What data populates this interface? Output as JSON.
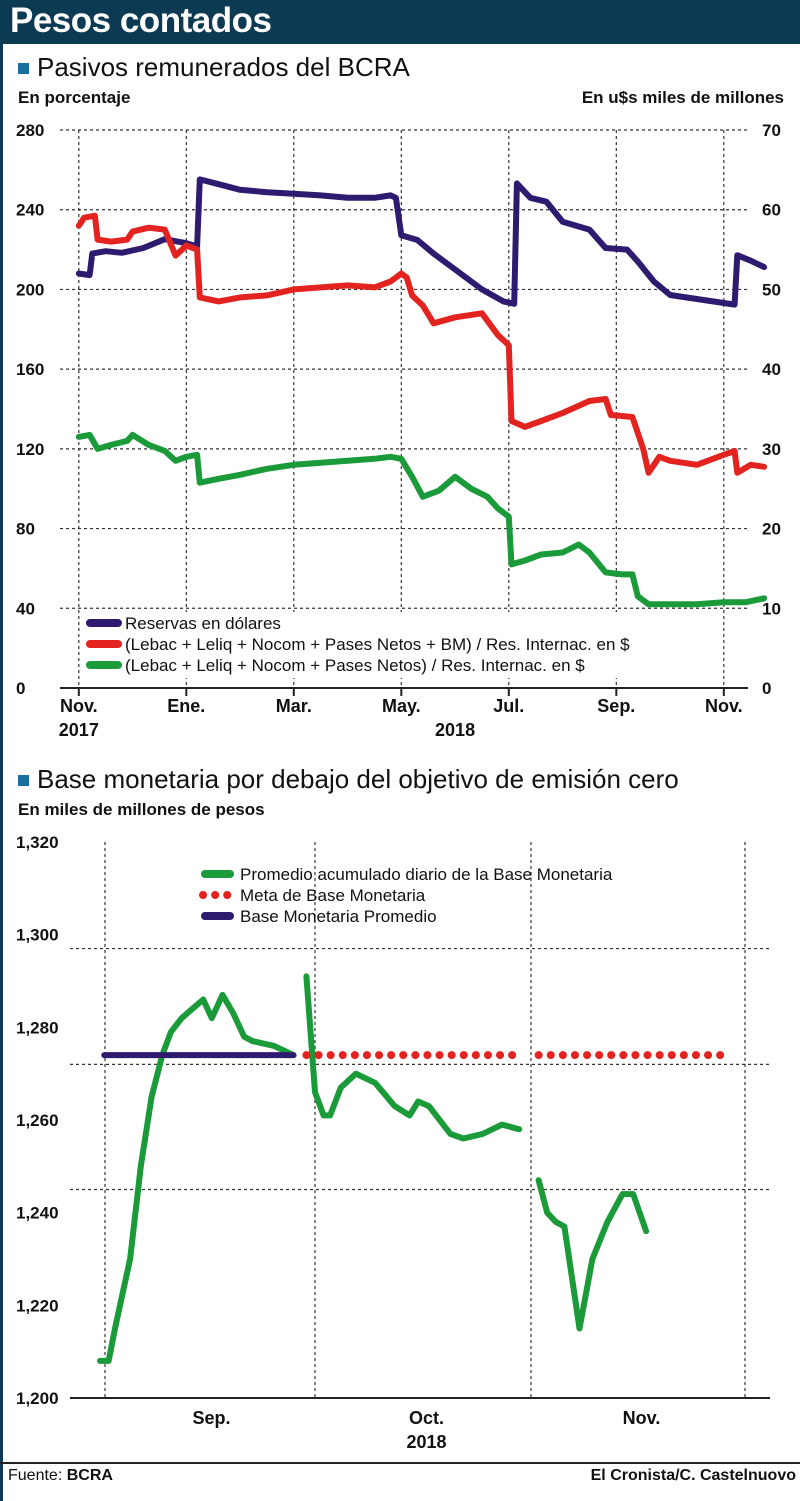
{
  "header": {
    "title": "Pesos contados"
  },
  "footer": {
    "source_label": "Fuente:",
    "source": "BCRA",
    "credit": "El Cronista/C. Castelnuovo"
  },
  "chart_data": [
    {
      "type": "line",
      "title": "Pasivos remunerados del BCRA",
      "ylabel_left": "En porcentaje",
      "ylabel_right": "En u$s miles de millones",
      "ylim_left": [
        0,
        280
      ],
      "ylim_right": [
        0,
        70
      ],
      "yticks_left": [
        "0",
        "40",
        "80",
        "120",
        "160",
        "200",
        "240",
        "280"
      ],
      "yticks_right": [
        "0",
        "10",
        "20",
        "30",
        "40",
        "50",
        "60",
        "70"
      ],
      "xticks": [
        {
          "label": "Nov.",
          "sub": "2017",
          "t": 0
        },
        {
          "label": "Ene.",
          "sub": "",
          "t": 2
        },
        {
          "label": "Mar.",
          "sub": "",
          "t": 4
        },
        {
          "label": "May.",
          "sub": "2018",
          "t": 6
        },
        {
          "label": "Jul.",
          "sub": "",
          "t": 8
        },
        {
          "label": "Sep.",
          "sub": "",
          "t": 10
        },
        {
          "label": "Nov.",
          "sub": "",
          "t": 12
        }
      ],
      "x_range": [
        -0.35,
        12.45
      ],
      "legend": [
        {
          "name": "Reservas en dólares",
          "color": "#2e1a6e"
        },
        {
          "name": "(Lebac + Leliq + Nocom + Pases Netos + BM) / Res. Internac. en $",
          "color": "#e3231f"
        },
        {
          "name": "(Lebac + Leliq + Nocom + Pases Netos) / Res. Internac. en $",
          "color": "#1b9a3a"
        }
      ],
      "series": [
        {
          "name": "Reservas en dólares",
          "axis": "right",
          "color": "#2e1a6e",
          "points": [
            [
              0,
              52
            ],
            [
              0.2,
              51.8
            ],
            [
              0.25,
              54.5
            ],
            [
              0.5,
              54.8
            ],
            [
              0.8,
              54.6
            ],
            [
              1.2,
              55.2
            ],
            [
              1.6,
              56.3
            ],
            [
              2.0,
              55.8
            ],
            [
              2.2,
              55.4
            ],
            [
              2.25,
              63.8
            ],
            [
              2.6,
              63.2
            ],
            [
              3.0,
              62.5
            ],
            [
              3.5,
              62.2
            ],
            [
              4.0,
              62
            ],
            [
              4.5,
              61.8
            ],
            [
              5.0,
              61.5
            ],
            [
              5.5,
              61.5
            ],
            [
              5.8,
              61.8
            ],
            [
              5.9,
              61.5
            ],
            [
              6.0,
              56.8
            ],
            [
              6.3,
              56.2
            ],
            [
              6.6,
              54.5
            ],
            [
              7.0,
              52.5
            ],
            [
              7.5,
              50
            ],
            [
              7.9,
              48.5
            ],
            [
              8.1,
              48.2
            ],
            [
              8.15,
              63.3
            ],
            [
              8.4,
              61.5
            ],
            [
              8.7,
              61
            ],
            [
              9.0,
              58.5
            ],
            [
              9.5,
              57.5
            ],
            [
              9.8,
              55.2
            ],
            [
              10.2,
              55
            ],
            [
              10.4,
              53.5
            ],
            [
              10.7,
              51
            ],
            [
              11.0,
              49.3
            ],
            [
              11.5,
              48.8
            ],
            [
              12.0,
              48.3
            ],
            [
              12.2,
              48.1
            ],
            [
              12.25,
              54.3
            ],
            [
              12.5,
              53.6
            ],
            [
              12.75,
              52.8
            ]
          ]
        },
        {
          "name": "(Lebac + Leliq + Nocom + Pases Netos + BM) / Res. Internac. en $",
          "axis": "left",
          "color": "#e3231f",
          "points": [
            [
              0,
              232
            ],
            [
              0.1,
              236
            ],
            [
              0.3,
              237
            ],
            [
              0.35,
              225
            ],
            [
              0.6,
              224
            ],
            [
              0.9,
              225
            ],
            [
              1.0,
              229
            ],
            [
              1.3,
              231
            ],
            [
              1.6,
              230
            ],
            [
              1.8,
              217
            ],
            [
              2.0,
              222
            ],
            [
              2.1,
              221
            ],
            [
              2.2,
              220
            ],
            [
              2.25,
              196
            ],
            [
              2.6,
              194
            ],
            [
              3.0,
              196
            ],
            [
              3.5,
              197
            ],
            [
              4.0,
              200
            ],
            [
              4.5,
              201
            ],
            [
              5.0,
              202
            ],
            [
              5.5,
              201
            ],
            [
              5.8,
              204
            ],
            [
              6.0,
              208
            ],
            [
              6.1,
              206
            ],
            [
              6.2,
              197
            ],
            [
              6.4,
              192
            ],
            [
              6.6,
              183
            ],
            [
              7.0,
              186
            ],
            [
              7.5,
              188
            ],
            [
              7.8,
              177
            ],
            [
              8.0,
              172
            ],
            [
              8.05,
              134
            ],
            [
              8.3,
              131
            ],
            [
              8.6,
              134
            ],
            [
              9.0,
              138
            ],
            [
              9.5,
              144
            ],
            [
              9.8,
              145
            ],
            [
              9.9,
              137
            ],
            [
              10.3,
              136
            ],
            [
              10.5,
              120
            ],
            [
              10.6,
              108
            ],
            [
              10.8,
              116
            ],
            [
              11.0,
              114
            ],
            [
              11.5,
              112
            ],
            [
              12.0,
              117
            ],
            [
              12.2,
              119
            ],
            [
              12.25,
              108
            ],
            [
              12.5,
              112
            ],
            [
              12.75,
              111
            ]
          ]
        },
        {
          "name": "(Lebac + Leliq + Nocom + Pases Netos) / Res. Internac. en $",
          "axis": "left",
          "color": "#1b9a3a",
          "points": [
            [
              0,
              126
            ],
            [
              0.2,
              127
            ],
            [
              0.35,
              120
            ],
            [
              0.6,
              122
            ],
            [
              0.9,
              124
            ],
            [
              1.0,
              127
            ],
            [
              1.3,
              122
            ],
            [
              1.6,
              119
            ],
            [
              1.8,
              114
            ],
            [
              2.0,
              116
            ],
            [
              2.2,
              117
            ],
            [
              2.25,
              103
            ],
            [
              2.6,
              105
            ],
            [
              3.0,
              107
            ],
            [
              3.5,
              110
            ],
            [
              4.0,
              112
            ],
            [
              4.5,
              113
            ],
            [
              5.0,
              114
            ],
            [
              5.5,
              115
            ],
            [
              5.8,
              116
            ],
            [
              6.0,
              115
            ],
            [
              6.2,
              106
            ],
            [
              6.4,
              96
            ],
            [
              6.7,
              99
            ],
            [
              7.0,
              106
            ],
            [
              7.3,
              100
            ],
            [
              7.6,
              96
            ],
            [
              7.8,
              90
            ],
            [
              8.0,
              86
            ],
            [
              8.05,
              62
            ],
            [
              8.3,
              64
            ],
            [
              8.6,
              67
            ],
            [
              9.0,
              68
            ],
            [
              9.3,
              72
            ],
            [
              9.5,
              68
            ],
            [
              9.8,
              58
            ],
            [
              10.1,
              57
            ],
            [
              10.3,
              57
            ],
            [
              10.4,
              46
            ],
            [
              10.6,
              42
            ],
            [
              11.0,
              42
            ],
            [
              11.5,
              42
            ],
            [
              12.0,
              43
            ],
            [
              12.4,
              43
            ],
            [
              12.75,
              45
            ]
          ]
        }
      ]
    },
    {
      "type": "line",
      "title": "Base monetaria por debajo del objetivo de emisión cero",
      "ylabel": "En miles de millones de pesos",
      "ylim": [
        1200,
        1320
      ],
      "yticks": [
        "1,200",
        "1,220",
        "1,240",
        "1,260",
        "1,280",
        "1,300",
        "1,320"
      ],
      "xticks": [
        {
          "label": "Sep.",
          "sub": "",
          "t": 0.5
        },
        {
          "label": "Oct.",
          "sub": "2018",
          "t": 1.5
        },
        {
          "label": "Nov.",
          "sub": "",
          "t": 2.5
        }
      ],
      "x_range": [
        0,
        3
      ],
      "legend": [
        {
          "name": "Promedio acumulado diario de la Base Monetaria",
          "color": "#1b9a3a",
          "style": "solid"
        },
        {
          "name": "Meta de Base Monetaria",
          "color": "#e3231f",
          "style": "dotted"
        },
        {
          "name": "Base Monetaria Promedio",
          "color": "#2e1a6e",
          "style": "solid"
        }
      ],
      "series": [
        {
          "name": "Promedio acumulado diario de la Base Monetaria",
          "color": "#1b9a3a",
          "style": "solid",
          "points": [
            [
              0,
              1208
            ],
            [
              0.04,
              1208
            ],
            [
              0.07,
              1215
            ],
            [
              0.14,
              1230
            ],
            [
              0.19,
              1250
            ],
            [
              0.24,
              1265
            ],
            [
              0.29,
              1274
            ],
            [
              0.33,
              1279
            ],
            [
              0.38,
              1282
            ],
            [
              0.43,
              1284
            ],
            [
              0.48,
              1286
            ],
            [
              0.52,
              1282
            ],
            [
              0.57,
              1287
            ],
            [
              0.62,
              1283
            ],
            [
              0.67,
              1278
            ],
            [
              0.71,
              1277
            ],
            [
              0.81,
              1276
            ],
            [
              0.9,
              1274
            ]
          ]
        },
        {
          "name": "Promedio acumulado diario de la Base Monetaria",
          "color": "#1b9a3a",
          "style": "solid",
          "points": [
            [
              0.96,
              1291
            ],
            [
              1.0,
              1266
            ],
            [
              1.04,
              1261
            ],
            [
              1.07,
              1261
            ],
            [
              1.12,
              1267
            ],
            [
              1.19,
              1270
            ],
            [
              1.28,
              1268
            ],
            [
              1.37,
              1263
            ],
            [
              1.44,
              1261
            ],
            [
              1.48,
              1264
            ],
            [
              1.53,
              1263
            ],
            [
              1.63,
              1257
            ],
            [
              1.69,
              1256
            ],
            [
              1.78,
              1257
            ],
            [
              1.87,
              1259
            ],
            [
              1.95,
              1258
            ]
          ]
        },
        {
          "name": "Promedio acumulado diario de la Base Monetaria",
          "color": "#1b9a3a",
          "style": "solid",
          "points": [
            [
              2.04,
              1247
            ],
            [
              2.08,
              1240
            ],
            [
              2.12,
              1238
            ],
            [
              2.16,
              1237
            ],
            [
              2.23,
              1215
            ],
            [
              2.29,
              1230
            ],
            [
              2.36,
              1238
            ],
            [
              2.43,
              1244
            ],
            [
              2.48,
              1244
            ],
            [
              2.54,
              1236
            ]
          ]
        },
        {
          "name": "Meta de Base Monetaria",
          "color": "#e3231f",
          "style": "dotted",
          "points": [
            [
              0.96,
              1274
            ],
            [
              1.95,
              1274
            ]
          ]
        },
        {
          "name": "Meta de Base Monetaria",
          "color": "#e3231f",
          "style": "dotted",
          "points": [
            [
              2.04,
              1274
            ],
            [
              2.93,
              1274
            ]
          ]
        },
        {
          "name": "Base Monetaria Promedio",
          "color": "#2e1a6e",
          "style": "solid",
          "points": [
            [
              0.02,
              1274
            ],
            [
              0.9,
              1274
            ]
          ]
        }
      ]
    }
  ]
}
